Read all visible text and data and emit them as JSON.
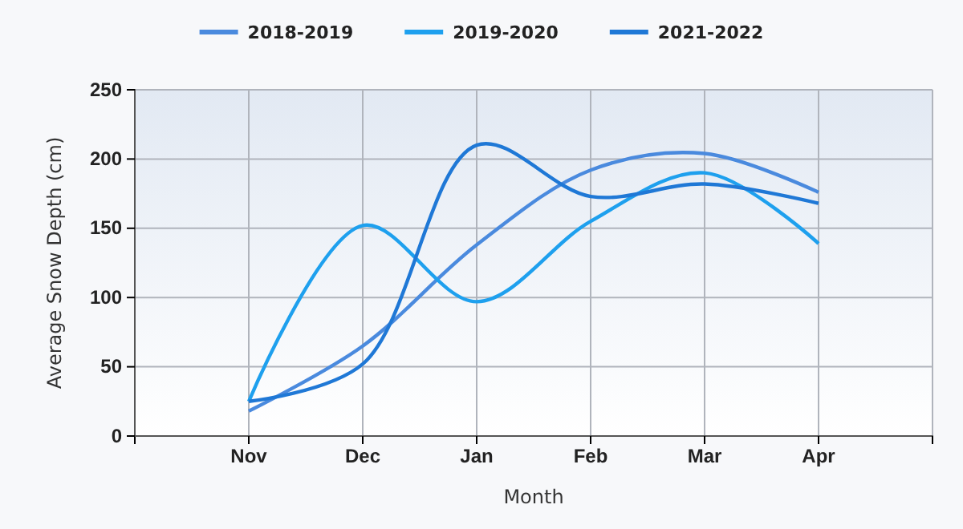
{
  "chart_data": {
    "type": "line",
    "xlabel": "Month",
    "ylabel": "Average Snow Depth (cm)",
    "categories": [
      "Nov",
      "Dec",
      "Jan",
      "Feb",
      "Mar",
      "Apr"
    ],
    "series": [
      {
        "name": "2018-2019",
        "color": "#4a8ade",
        "values": [
          18,
          65,
          138,
          192,
          204,
          176
        ]
      },
      {
        "name": "2019-2020",
        "color": "#1ea0ee",
        "values": [
          25,
          152,
          97,
          155,
          190,
          139
        ]
      },
      {
        "name": "2021-2022",
        "color": "#1f78d6",
        "values": [
          25,
          52,
          210,
          173,
          182,
          168
        ]
      }
    ],
    "ylim": [
      0,
      250
    ],
    "yticks": [
      0,
      50,
      100,
      150,
      200,
      250
    ],
    "grid": true,
    "legend": "top",
    "line_style": "solid",
    "marker": "none"
  }
}
